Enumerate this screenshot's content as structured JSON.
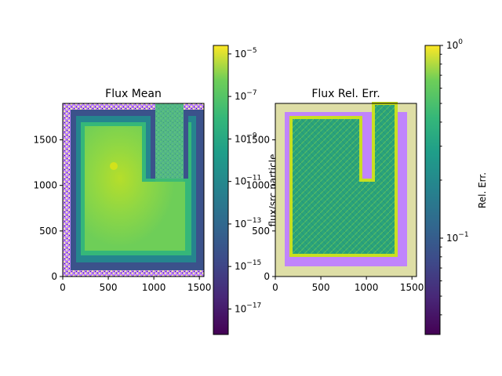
{
  "chart_data": [
    {
      "type": "heatmap",
      "title": "Flux Mean",
      "xlabel": "",
      "ylabel": "",
      "xlim": [
        0,
        1550
      ],
      "ylim": [
        0,
        1900
      ],
      "x_ticks": [
        "0",
        "500",
        "1000",
        "1500"
      ],
      "y_ticks": [
        "0",
        "500",
        "1000",
        "1500"
      ],
      "colormap": "viridis",
      "colorbar": {
        "label": "flux/src particle",
        "scale": "log",
        "ticks": [
          "10",
          "10",
          "10",
          "10",
          "10",
          "10",
          "10"
        ],
        "tick_exponents": [
          "−5",
          "−7",
          "−9",
          "−11",
          "−13",
          "−15",
          "−17"
        ]
      },
      "nan_color": "#c084fc"
    },
    {
      "type": "heatmap",
      "title": "Flux Rel. Err.",
      "xlabel": "",
      "ylabel": "",
      "xlim": [
        0,
        1550
      ],
      "ylim": [
        0,
        1900
      ],
      "x_ticks": [
        "0",
        "500",
        "1000",
        "1500"
      ],
      "y_ticks": [
        "0",
        "500",
        "1000",
        "1500"
      ],
      "colormap": "viridis",
      "colorbar": {
        "label": "Rel. Err.",
        "scale": "log",
        "ticks": [
          "10",
          "10"
        ],
        "tick_exponents": [
          "0",
          "−1"
        ]
      },
      "nan_color": "#c084fc"
    }
  ]
}
